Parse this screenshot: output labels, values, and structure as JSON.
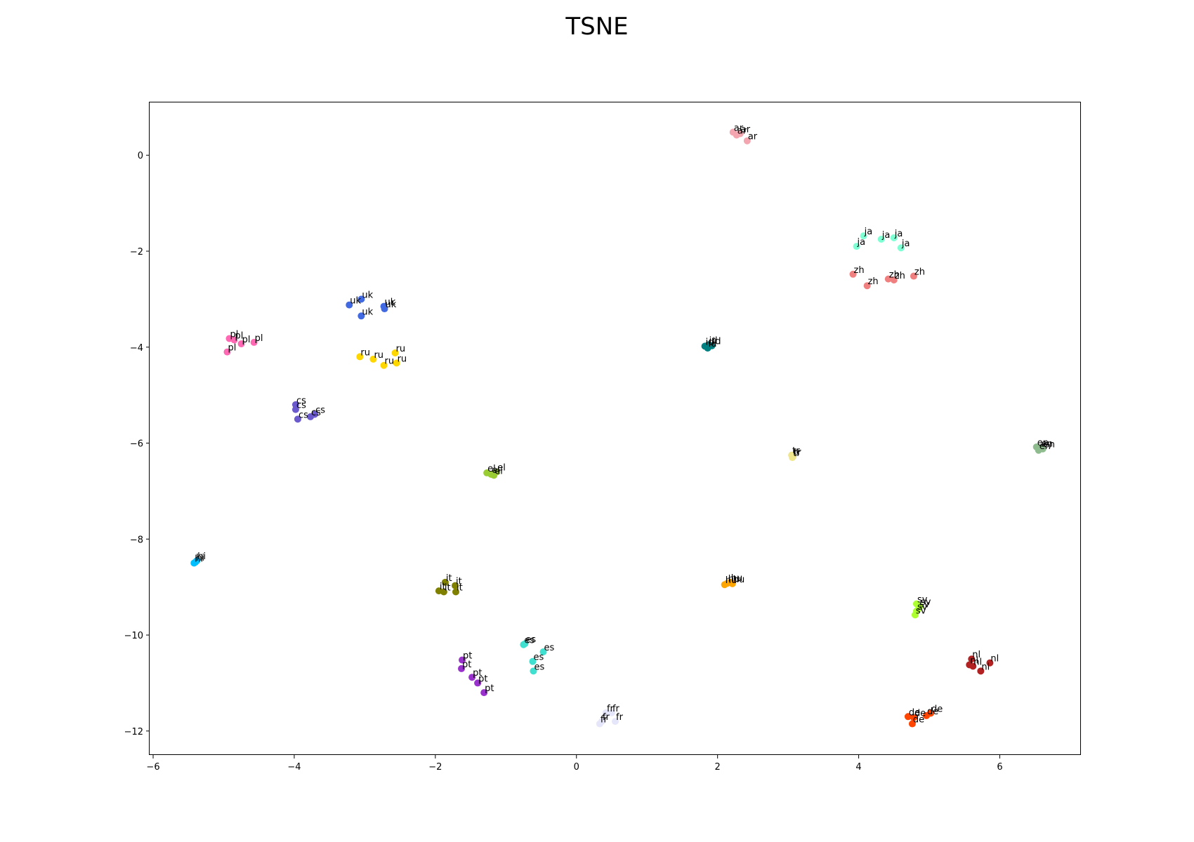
{
  "chart_data": {
    "type": "scatter",
    "title": "TSNE",
    "xlabel": "",
    "ylabel": "",
    "xlim": [
      -6.05,
      7.15
    ],
    "ylim": [
      -12.5,
      1.1
    ],
    "xticks": [
      -6,
      -4,
      -2,
      0,
      2,
      4,
      6
    ],
    "yticks": [
      0,
      -2,
      -4,
      -6,
      -8,
      -10,
      -12
    ],
    "xtick_labels": [
      "−6",
      "−4",
      "−2",
      "0",
      "2",
      "4",
      "6"
    ],
    "ytick_labels": [
      "0",
      "−2",
      "−4",
      "−6",
      "−8",
      "−10",
      "−12"
    ],
    "grid": false,
    "legend": "none",
    "series": [
      {
        "name": "ar",
        "color": "#f4a6b0",
        "points": [
          [
            2.22,
            0.48
          ],
          [
            2.32,
            0.45
          ],
          [
            2.27,
            0.42
          ],
          [
            2.42,
            0.3
          ]
        ]
      },
      {
        "name": "ja",
        "color": "#7fffd4",
        "points": [
          [
            4.07,
            -1.68
          ],
          [
            4.32,
            -1.75
          ],
          [
            4.5,
            -1.72
          ],
          [
            3.97,
            -1.9
          ],
          [
            4.6,
            -1.93
          ]
        ]
      },
      {
        "name": "zh",
        "color": "#f08080",
        "points": [
          [
            3.92,
            -2.48
          ],
          [
            4.12,
            -2.72
          ],
          [
            4.42,
            -2.58
          ],
          [
            4.5,
            -2.6
          ],
          [
            4.78,
            -2.52
          ]
        ]
      },
      {
        "name": "uk",
        "color": "#4169e1",
        "points": [
          [
            -3.22,
            -3.12
          ],
          [
            -3.05,
            -3.0
          ],
          [
            -3.05,
            -3.35
          ],
          [
            -2.73,
            -3.15
          ],
          [
            -2.72,
            -3.2
          ]
        ]
      },
      {
        "name": "pl",
        "color": "#ff69b4",
        "points": [
          [
            -4.92,
            -3.82
          ],
          [
            -4.85,
            -3.85
          ],
          [
            -4.75,
            -3.93
          ],
          [
            -4.57,
            -3.9
          ],
          [
            -4.95,
            -4.1
          ]
        ]
      },
      {
        "name": "ru",
        "color": "#ffd700",
        "points": [
          [
            -3.07,
            -4.2
          ],
          [
            -2.88,
            -4.25
          ],
          [
            -2.73,
            -4.38
          ],
          [
            -2.57,
            -4.12
          ],
          [
            -2.55,
            -4.33
          ]
        ]
      },
      {
        "name": "id",
        "color": "#008080",
        "points": [
          [
            1.82,
            -3.98
          ],
          [
            1.87,
            -3.95
          ],
          [
            1.92,
            -3.97
          ],
          [
            1.86,
            -4.02
          ]
        ]
      },
      {
        "name": "cs",
        "color": "#6a5acd",
        "points": [
          [
            -3.98,
            -5.2
          ],
          [
            -3.98,
            -5.3
          ],
          [
            -3.95,
            -5.5
          ],
          [
            -3.77,
            -5.45
          ],
          [
            -3.71,
            -5.4
          ]
        ]
      },
      {
        "name": "tr",
        "color": "#f0e68c",
        "points": [
          [
            3.05,
            -6.25
          ],
          [
            3.06,
            -6.3
          ],
          [
            3.07,
            -6.28
          ]
        ]
      },
      {
        "name": "en",
        "color": "#8fbc8f",
        "points": [
          [
            6.52,
            -6.08
          ],
          [
            6.55,
            -6.15
          ],
          [
            6.58,
            -6.1
          ],
          [
            6.61,
            -6.12
          ]
        ]
      },
      {
        "name": "el",
        "color": "#9acd32",
        "points": [
          [
            -1.27,
            -6.62
          ],
          [
            -1.21,
            -6.65
          ],
          [
            -1.17,
            -6.67
          ],
          [
            -1.13,
            -6.6
          ]
        ]
      },
      {
        "name": "hi",
        "color": "#00bfff",
        "points": [
          [
            -5.42,
            -8.5
          ],
          [
            -5.4,
            -8.48
          ],
          [
            -5.38,
            -8.45
          ]
        ]
      },
      {
        "name": "it",
        "color": "#808000",
        "points": [
          [
            -1.95,
            -9.08
          ],
          [
            -1.88,
            -9.1
          ],
          [
            -1.86,
            -8.9
          ],
          [
            -1.72,
            -8.97
          ],
          [
            -1.71,
            -9.1
          ]
        ]
      },
      {
        "name": "hu",
        "color": "#ffa500",
        "points": [
          [
            2.1,
            -8.95
          ],
          [
            2.14,
            -8.92
          ],
          [
            2.18,
            -8.9
          ],
          [
            2.21,
            -8.93
          ]
        ]
      },
      {
        "name": "sv",
        "color": "#adff2f",
        "points": [
          [
            4.82,
            -9.35
          ],
          [
            4.85,
            -9.45
          ],
          [
            4.82,
            -9.5
          ],
          [
            4.8,
            -9.58
          ],
          [
            4.87,
            -9.4
          ]
        ]
      },
      {
        "name": "es",
        "color": "#40e0d0",
        "points": [
          [
            -0.75,
            -10.2
          ],
          [
            -0.73,
            -10.18
          ],
          [
            -0.62,
            -10.55
          ],
          [
            -0.61,
            -10.75
          ],
          [
            -0.47,
            -10.35
          ]
        ]
      },
      {
        "name": "pt",
        "color": "#9932cc",
        "points": [
          [
            -1.62,
            -10.52
          ],
          [
            -1.63,
            -10.7
          ],
          [
            -1.48,
            -10.88
          ],
          [
            -1.4,
            -11.0
          ],
          [
            -1.31,
            -11.2
          ]
        ]
      },
      {
        "name": "nl",
        "color": "#b22222",
        "points": [
          [
            5.57,
            -10.62
          ],
          [
            5.6,
            -10.5
          ],
          [
            5.62,
            -10.65
          ],
          [
            5.73,
            -10.75
          ],
          [
            5.86,
            -10.58
          ]
        ]
      },
      {
        "name": "de",
        "color": "#ff4500",
        "points": [
          [
            4.7,
            -11.7
          ],
          [
            4.76,
            -11.85
          ],
          [
            4.78,
            -11.72
          ],
          [
            4.96,
            -11.68
          ],
          [
            5.02,
            -11.63
          ]
        ]
      },
      {
        "name": "fr",
        "color": "#e6e6fa",
        "points": [
          [
            0.33,
            -11.85
          ],
          [
            0.36,
            -11.8
          ],
          [
            0.42,
            -11.62
          ],
          [
            0.5,
            -11.62
          ],
          [
            0.55,
            -11.8
          ]
        ]
      }
    ]
  }
}
